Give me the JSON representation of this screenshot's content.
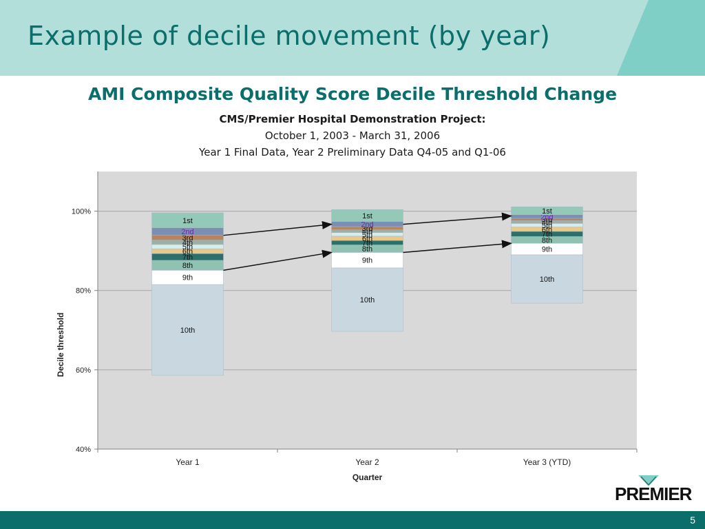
{
  "slide": {
    "title": "Example of decile movement (by year)",
    "page_number": "5",
    "logo_text": "PREMIER"
  },
  "colors": {
    "header_bg": "#b3dfdb",
    "header_accent": "#7fcfc6",
    "title_text": "#0b6e6a",
    "footer_bar": "#0b6e6a",
    "plot_bg": "#d9d9d9"
  },
  "chart_data": {
    "type": "bar",
    "stacked": true,
    "title": "AMI Composite Quality Score Decile Threshold Change",
    "subtitle_lines": [
      "CMS/Premier Hospital Demonstration Project:",
      "October 1, 2003 - March 31, 2006",
      "Year 1 Final Data, Year 2 Preliminary Data Q4-05 and Q1-06"
    ],
    "xlabel": "Quarter",
    "ylabel": "Decile threshold",
    "ylim": [
      40,
      110
    ],
    "yticks": [
      40,
      60,
      80,
      100
    ],
    "ytick_labels": [
      "40%",
      "60%",
      "80%",
      "100%"
    ],
    "grid": true,
    "categories": [
      "Year 1",
      "Year 2",
      "Year 3 (YTD)"
    ],
    "decile_labels": [
      "10th",
      "9th",
      "8th",
      "7th",
      "6th",
      "5th",
      "4th",
      "3rd",
      "2nd",
      "1st"
    ],
    "decile_colors": [
      "#c9d7e0",
      "#ffffff",
      "#8fc2b0",
      "#2d6f6a",
      "#e7c98b",
      "#d6ecee",
      "#9ab0a6",
      "#b78460",
      "#7b8fb3",
      "#94c9b8"
    ],
    "bars": [
      {
        "category": "Year 1",
        "bounds": [
          58.6,
          81.5,
          85.1,
          87.6,
          89.3,
          90.5,
          91.6,
          92.7,
          93.9,
          95.8,
          99.6
        ]
      },
      {
        "category": "Year 2",
        "bounds": [
          69.7,
          85.7,
          89.6,
          91.5,
          92.6,
          93.7,
          94.6,
          95.3,
          96.1,
          97.4,
          100.4
        ]
      },
      {
        "category": "Year 3 (YTD)",
        "bounds": [
          76.8,
          89.0,
          91.9,
          93.6,
          94.9,
          96.0,
          96.9,
          97.6,
          98.2,
          99.1,
          101.1
        ]
      }
    ],
    "arrows": [
      {
        "from_category": "Year 1",
        "from_value": 93.9,
        "to_category": "Year 2",
        "to_value": 96.7
      },
      {
        "from_category": "Year 2",
        "from_value": 96.7,
        "to_category": "Year 3 (YTD)",
        "to_value": 98.8
      },
      {
        "from_category": "Year 1",
        "from_value": 85.1,
        "to_category": "Year 2",
        "to_value": 89.6
      },
      {
        "from_category": "Year 2",
        "from_value": 89.6,
        "to_category": "Year 3 (YTD)",
        "to_value": 91.9
      }
    ]
  }
}
